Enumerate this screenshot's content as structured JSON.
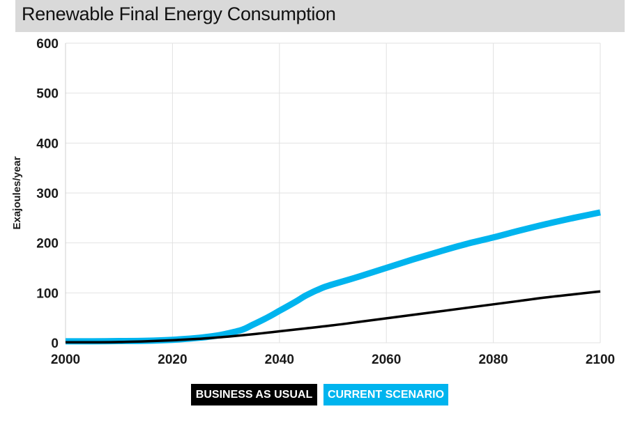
{
  "chart_data": {
    "type": "line",
    "title": "Renewable Final Energy Consumption",
    "ylabel": "Exajoules/year",
    "xlabel": "",
    "xlim": [
      2000,
      2100
    ],
    "ylim": [
      0,
      600
    ],
    "x_ticks": [
      "2000",
      "2020",
      "2040",
      "2060",
      "2080",
      "2100"
    ],
    "y_ticks": [
      "0",
      "100",
      "200",
      "300",
      "400",
      "500",
      "600"
    ],
    "grid": true,
    "legend_position": "bottom-center",
    "series": [
      {
        "name": "BUSINESS AS USUAL",
        "color": "#000000",
        "x": [
          2000,
          2005,
          2010,
          2015,
          2020,
          2025,
          2030,
          2035,
          2040,
          2045,
          2050,
          2055,
          2060,
          2065,
          2070,
          2075,
          2080,
          2085,
          2090,
          2095,
          2100
        ],
        "values": [
          1,
          1,
          1.5,
          3,
          5,
          8,
          12,
          17,
          23,
          29,
          35,
          42,
          49,
          56,
          63,
          70,
          77,
          84,
          91,
          97,
          103
        ]
      },
      {
        "name": "CURRENT SCENARIO",
        "color": "#00b4ee",
        "x": [
          2000,
          2005,
          2010,
          2015,
          2020,
          2025,
          2028,
          2030,
          2033,
          2035,
          2038,
          2040,
          2043,
          2045,
          2048,
          2050,
          2055,
          2060,
          2065,
          2070,
          2075,
          2080,
          2085,
          2090,
          2095,
          2100
        ],
        "values": [
          3,
          3,
          3.5,
          4,
          6,
          10,
          14,
          18,
          26,
          36,
          52,
          64,
          82,
          95,
          110,
          117,
          133,
          150,
          167,
          183,
          198,
          211,
          225,
          238,
          250,
          261
        ]
      }
    ]
  },
  "legend": {
    "bau_label": "BUSINESS AS USUAL",
    "bau_color": "#000000",
    "current_label": "CURRENT SCENARIO",
    "current_color": "#00b4ee"
  }
}
